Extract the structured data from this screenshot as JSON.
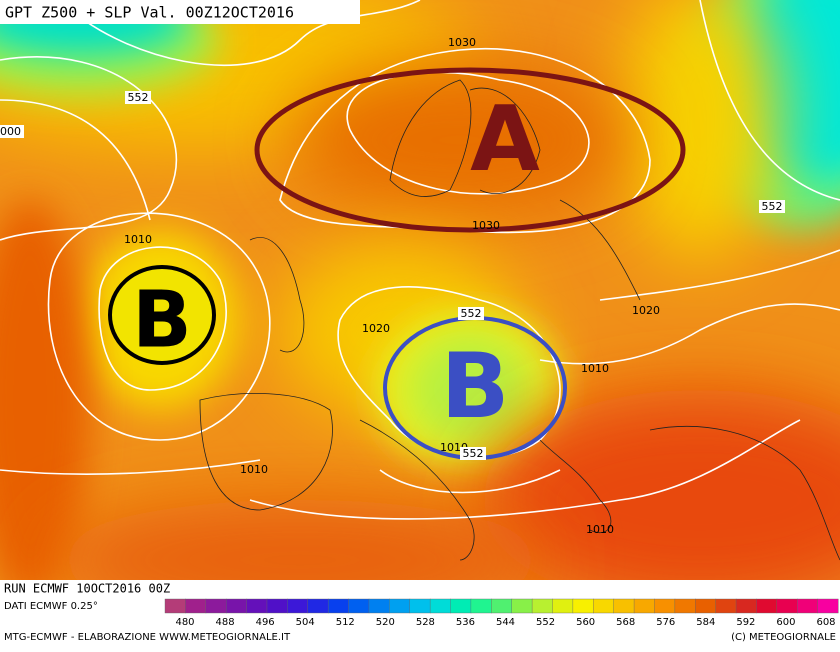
{
  "header": {
    "title": "GPT Z500 + SLP Val. 00Z12OCT2016"
  },
  "map": {
    "centers": [
      {
        "label": "A",
        "color": "#7b1414"
      },
      {
        "label": "B",
        "color": "#000000"
      },
      {
        "label": "B",
        "color": "#3b4fc4"
      }
    ],
    "isobar_labels": [
      "1030",
      "1030",
      "1010",
      "1020",
      "1020",
      "1010",
      "1010",
      "1010",
      "1010"
    ],
    "height_labels": [
      "552",
      "552",
      "552",
      "552",
      "000"
    ]
  },
  "footer": {
    "run": "RUN ECMWF 10OCT2016 00Z",
    "source": "DATI ECMWF 0.25°",
    "credit_left": "MTG-ECMWF - ELABORAZIONE WWW.METEOGIORNALE.IT",
    "credit_right": "(C) METEOGIORNALE"
  },
  "colorbar": {
    "colors": [
      "#b43c78",
      "#a0208c",
      "#8c1a9c",
      "#7814aa",
      "#6410ba",
      "#5010c8",
      "#3c18d8",
      "#2028e4",
      "#0840ee",
      "#0060f0",
      "#0080f0",
      "#00a0f0",
      "#00c0ec",
      "#00dcd8",
      "#00ecb4",
      "#20f490",
      "#50f070",
      "#88f048",
      "#b8f030",
      "#e0f010",
      "#f8f000",
      "#f8d800",
      "#f8c000",
      "#f8a800",
      "#f89000",
      "#f07800",
      "#e86000",
      "#e04410",
      "#d82820",
      "#e00a30",
      "#e80050",
      "#f00078",
      "#f800a0"
    ],
    "labels": [
      480,
      488,
      496,
      504,
      512,
      520,
      528,
      536,
      544,
      552,
      560,
      568,
      576,
      584,
      592,
      600,
      608
    ]
  }
}
